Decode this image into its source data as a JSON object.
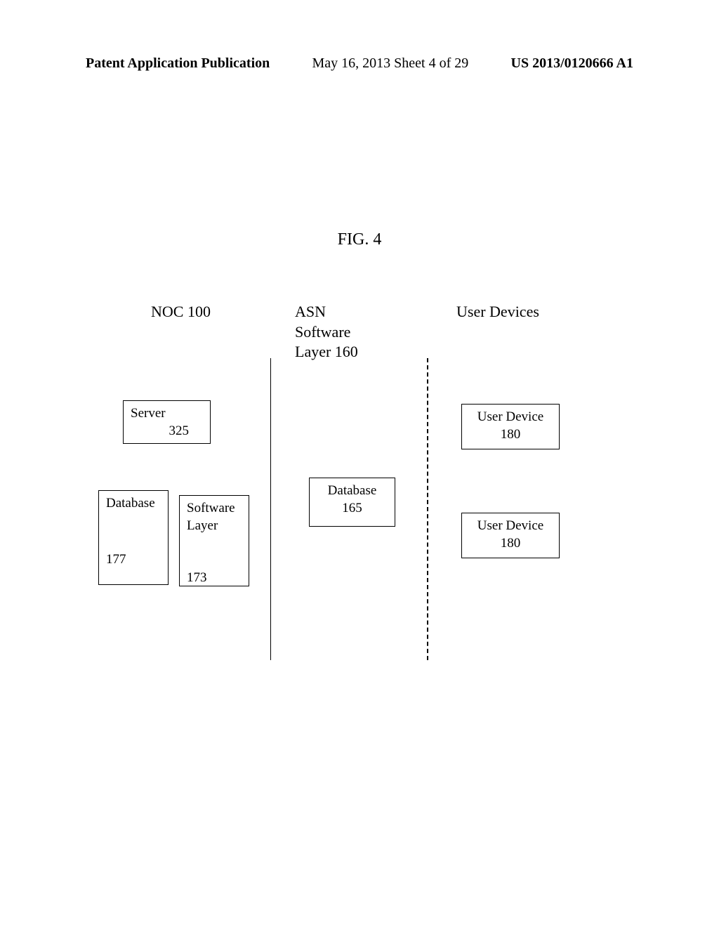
{
  "header": {
    "left": "Patent Application Publication",
    "center": "May 16, 2013  Sheet 4 of 29",
    "right": "US 2013/0120666 A1"
  },
  "figure": {
    "title": "FIG. 4"
  },
  "diagram": {
    "type": "flowchart",
    "background_color": "#ffffff",
    "border_color": "#000000",
    "text_color": "#000000",
    "font_family": "Times New Roman",
    "title_fontsize": 24,
    "header_fontsize": 22,
    "box_fontsize": 19,
    "border_width": 1.5,
    "columns": {
      "col1": {
        "header": "NOC 100"
      },
      "col2": {
        "header_line1": "ASN",
        "header_line2": "Software",
        "header_line3": "Layer 160"
      },
      "col3": {
        "header": "User Devices"
      }
    },
    "boxes": {
      "server": {
        "label": "Server",
        "number": "325"
      },
      "database_177": {
        "label": "Database",
        "number": "177"
      },
      "software_layer": {
        "label_line1": "Software",
        "label_line2": "Layer",
        "number": "173"
      },
      "database_165": {
        "label": "Database",
        "number": "165"
      },
      "user_device_1": {
        "label": "User Device",
        "number": "180"
      },
      "user_device_2": {
        "label": "User Device",
        "number": "180"
      }
    },
    "dividers": {
      "solid": {
        "style": "solid",
        "color": "#000000"
      },
      "dashed": {
        "style": "dashed",
        "color": "#000000"
      }
    }
  }
}
